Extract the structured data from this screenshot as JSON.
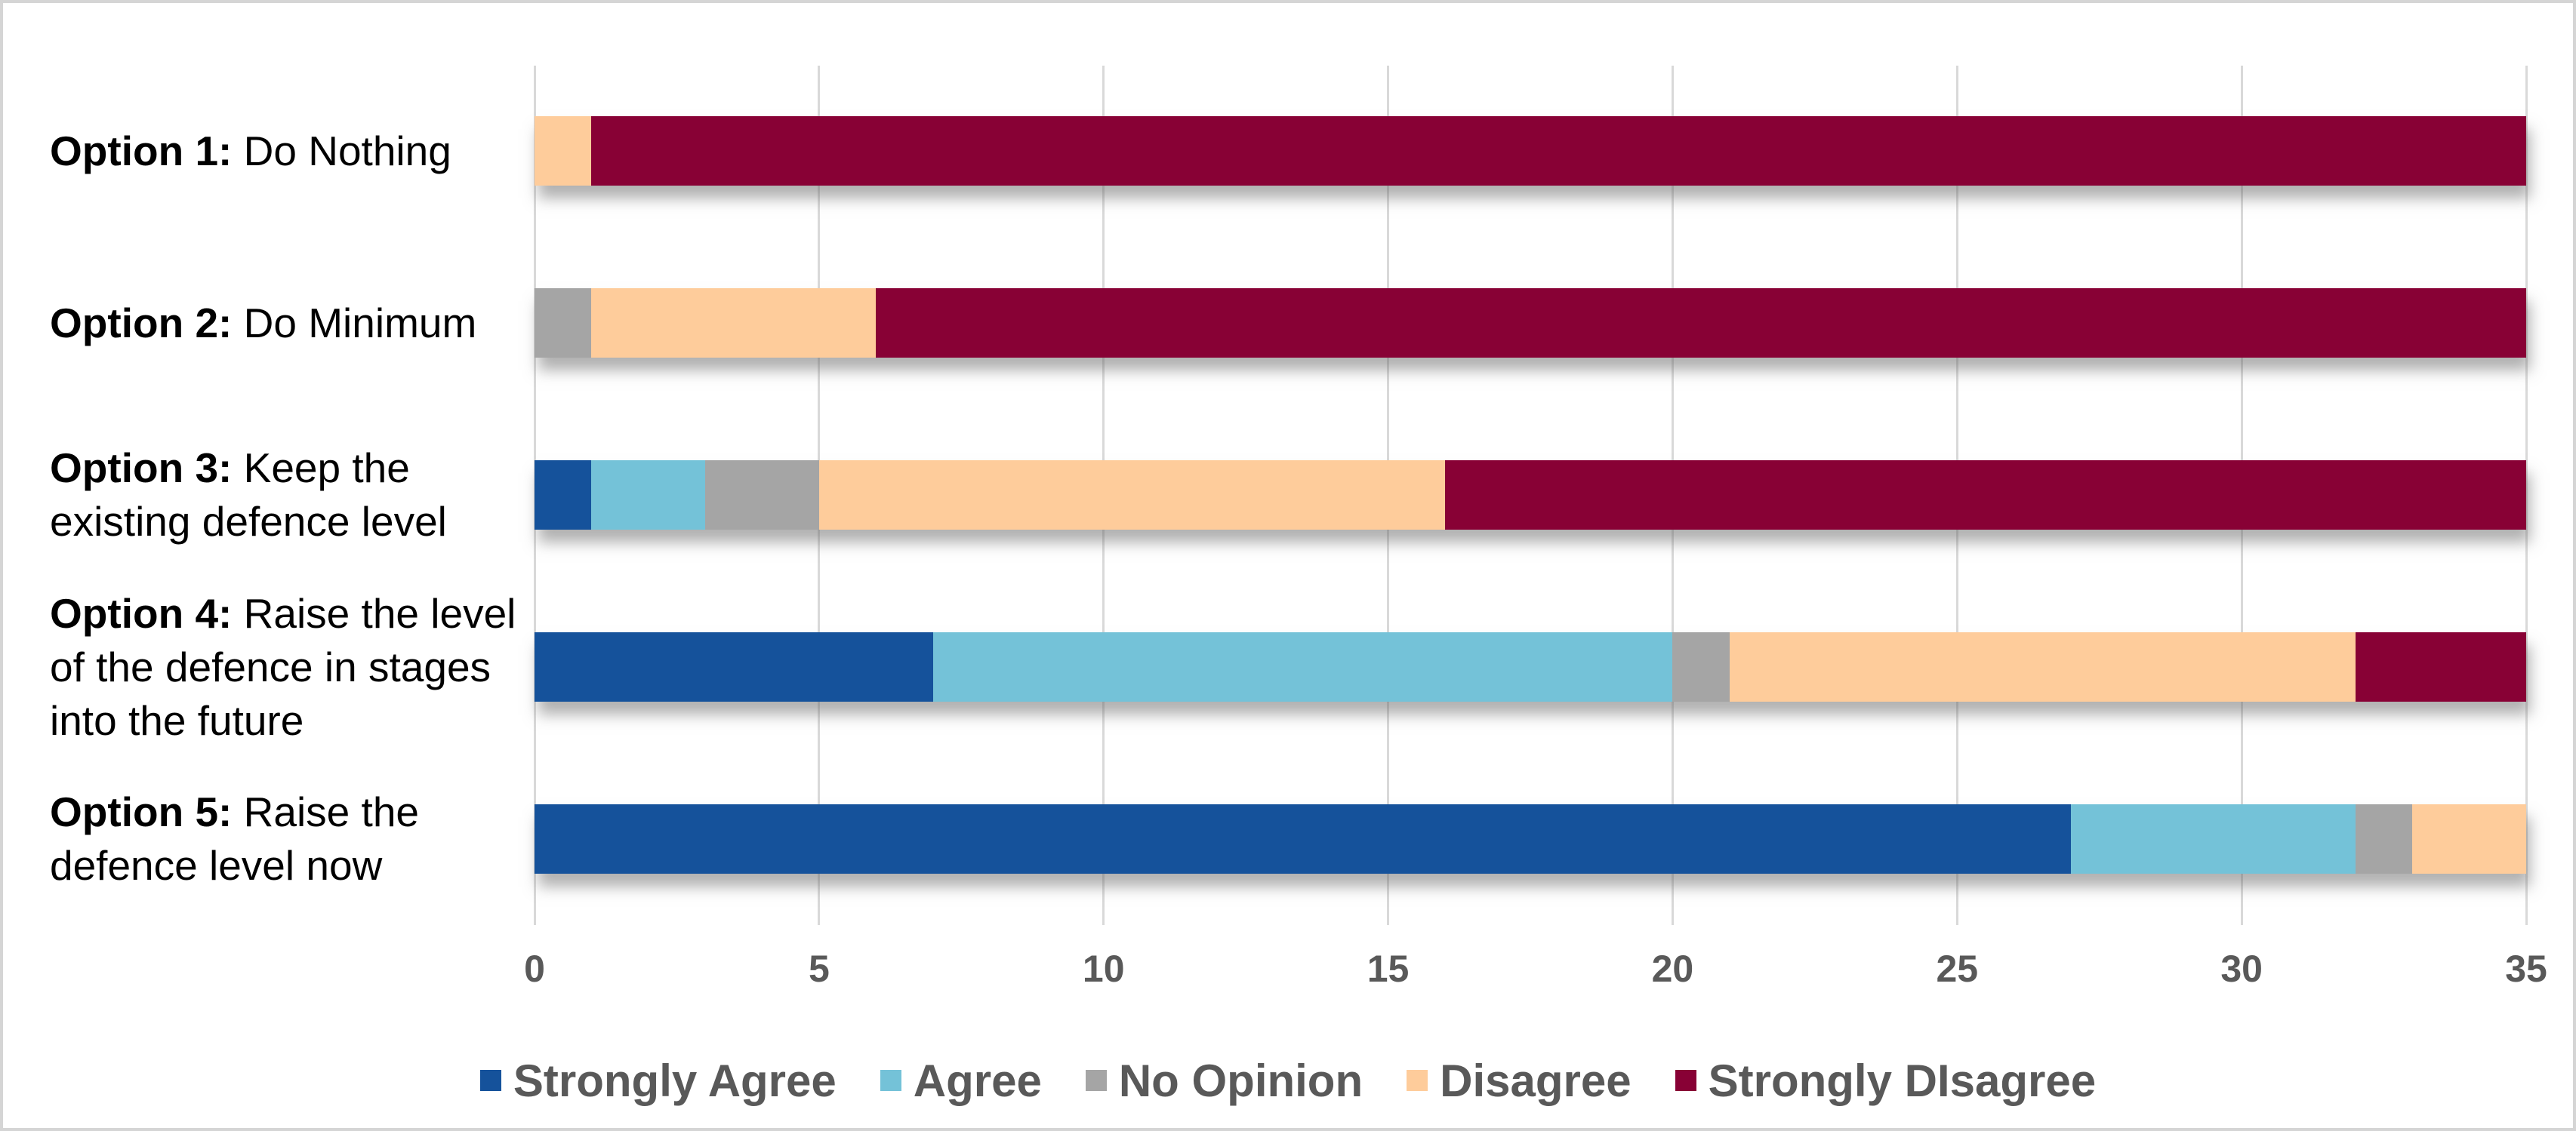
{
  "chart_data": {
    "type": "bar",
    "orientation": "horizontal",
    "stacked": true,
    "title": "",
    "xlabel": "",
    "ylabel": "",
    "grid": true,
    "legend_position": "bottom",
    "x_axis": {
      "min": 0,
      "max": 35,
      "tick_step": 5,
      "tick_labels": [
        "0",
        "5",
        "10",
        "15",
        "20",
        "25",
        "30",
        "35"
      ]
    },
    "categories": [
      {
        "bold": "Option 1:",
        "rest": " Do Nothing"
      },
      {
        "bold": "Option 2:",
        "rest": " Do Minimum"
      },
      {
        "bold": "Option 3:",
        "rest": " Keep the existing defence level"
      },
      {
        "bold": "Option 4:",
        "rest": " Raise the level of the defence in stages into the future"
      },
      {
        "bold": "Option 5:",
        "rest": " Raise the defence level now"
      }
    ],
    "series": [
      {
        "name": "Strongly Agree",
        "color": "#15529B",
        "values": [
          0,
          0,
          1,
          7,
          27
        ]
      },
      {
        "name": "Agree",
        "color": "#74C2D8",
        "values": [
          0,
          0,
          2,
          13,
          5
        ]
      },
      {
        "name": "No Opinion",
        "color": "#A5A5A5",
        "values": [
          0,
          1,
          2,
          1,
          1
        ]
      },
      {
        "name": "Disagree",
        "color": "#FECC9B",
        "values": [
          1,
          5,
          11,
          11,
          2
        ]
      },
      {
        "name": "Strongly DIsagree",
        "color": "#880135",
        "values": [
          34,
          29,
          19,
          3,
          0
        ]
      }
    ]
  },
  "colors": {
    "gridline": "#D9D9D9",
    "axis_text": "#595959",
    "legend_text": "#595959",
    "category_text": "#000000",
    "background": "#FFFFFF",
    "border": "#D5D5D5"
  }
}
